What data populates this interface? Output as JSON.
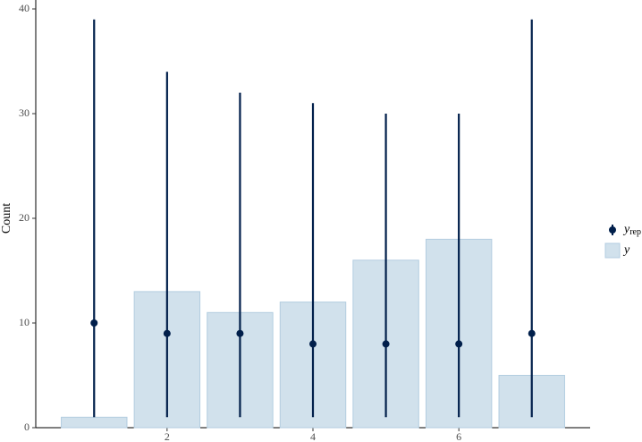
{
  "chart_data": {
    "type": "bar",
    "y_label": "Count",
    "x": [
      1,
      2,
      3,
      4,
      5,
      6,
      7
    ],
    "series": [
      {
        "name": "y",
        "color": "#d1e1ec",
        "values": [
          1,
          13,
          11,
          12,
          16,
          18,
          5
        ]
      }
    ],
    "intervals": {
      "name": "y",
      "subscript": "rep",
      "color": "#011f4b",
      "median": [
        10,
        9,
        9,
        8,
        8,
        8,
        9
      ],
      "lower": [
        1,
        1,
        1,
        1,
        1,
        1,
        1
      ],
      "upper": [
        39,
        34,
        32,
        31,
        30,
        30,
        39
      ]
    },
    "xlim": [
      0.2,
      7.8
    ],
    "xticks": [
      2,
      4,
      6
    ],
    "ylim": [
      0,
      40
    ],
    "yticks": [
      0,
      10,
      20,
      30,
      40
    ],
    "grid": false
  }
}
